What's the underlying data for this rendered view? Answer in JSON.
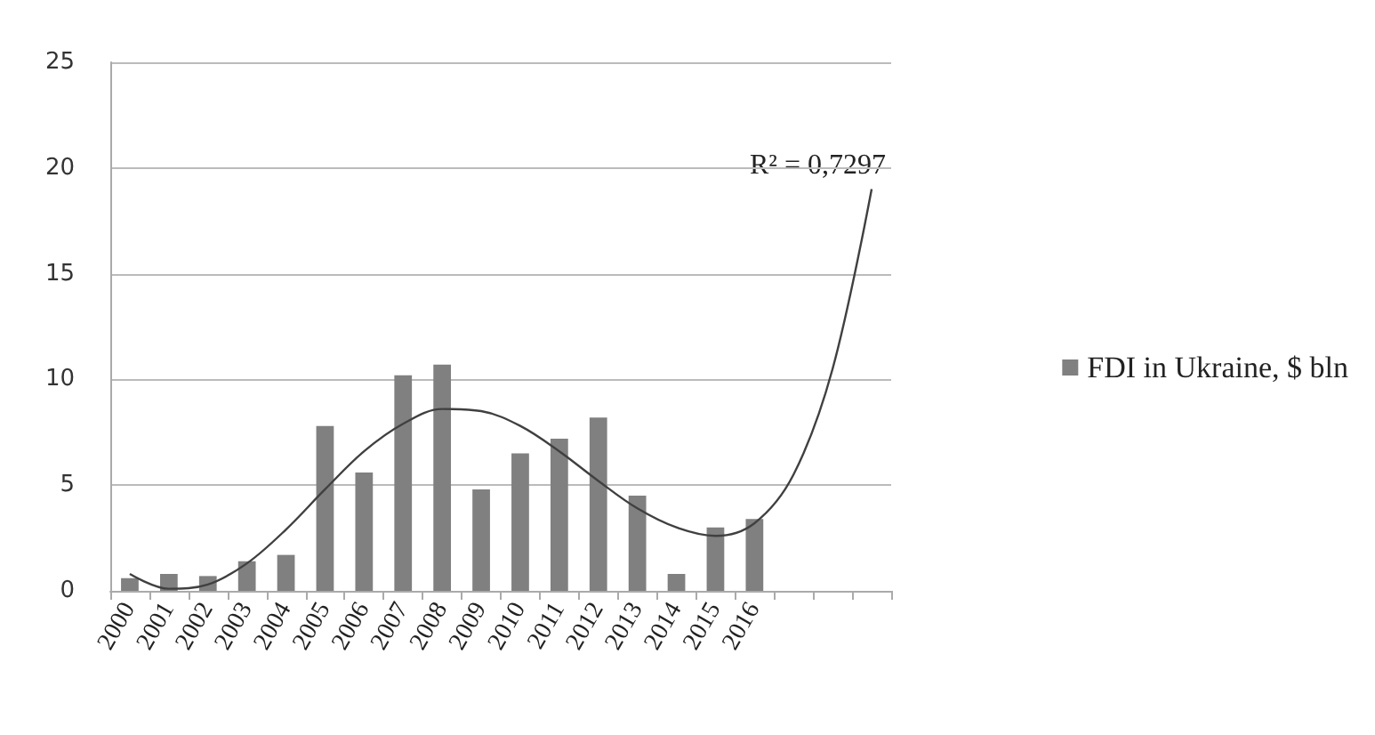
{
  "chart_data": {
    "type": "bar",
    "categories": [
      "2000",
      "2001",
      "2002",
      "2003",
      "2004",
      "2005",
      "2006",
      "2007",
      "2008",
      "2009",
      "2010",
      "2011",
      "2012",
      "2013",
      "2014",
      "2015",
      "2016",
      null,
      null,
      null
    ],
    "series": [
      {
        "name": "FDI in Ukraine, $ bln",
        "color": "#808080",
        "values": [
          0.6,
          0.8,
          0.7,
          1.4,
          1.7,
          7.8,
          5.6,
          10.2,
          10.7,
          4.8,
          6.5,
          7.2,
          8.2,
          4.5,
          0.8,
          3.0,
          3.4,
          null,
          null,
          null
        ]
      },
      {
        "type": "line",
        "color": "#404040",
        "values": [
          0.8,
          0.1,
          0.3,
          1.3,
          2.9,
          4.8,
          6.6,
          7.9,
          8.6,
          8.5,
          7.8,
          6.6,
          5.2,
          3.9,
          3.0,
          2.6,
          3.2,
          5.5,
          10.5,
          19.0
        ]
      }
    ],
    "annotations": [
      "R² = 0,7297"
    ],
    "ylim": [
      0,
      25
    ],
    "yticks": [
      0,
      5,
      10,
      15,
      20,
      25
    ],
    "grid": "y",
    "legend": "right",
    "marker": "none"
  }
}
